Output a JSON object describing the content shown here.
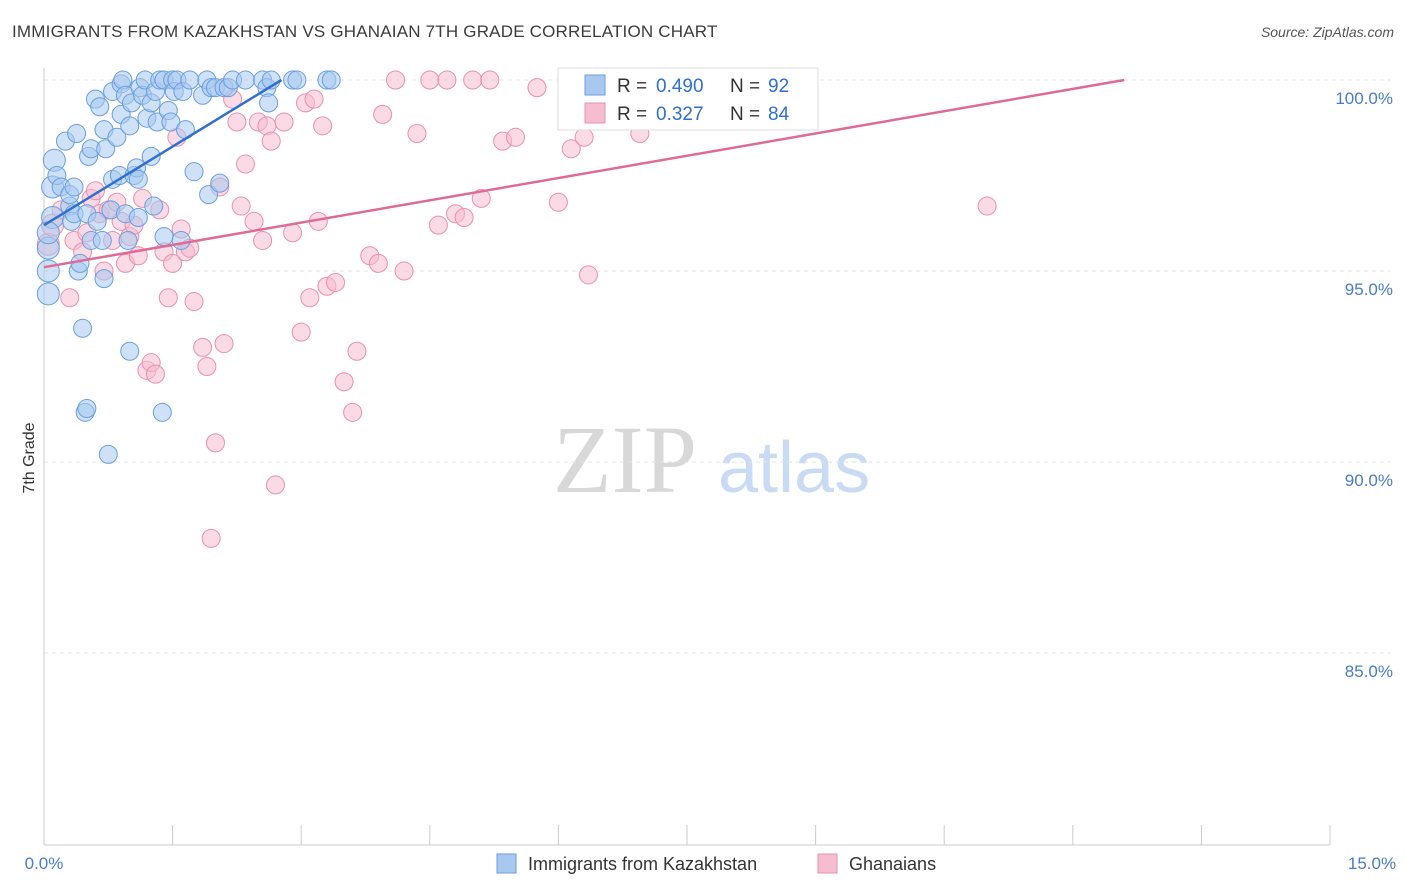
{
  "title": "IMMIGRANTS FROM KAZAKHSTAN VS GHANAIAN 7TH GRADE CORRELATION CHART",
  "source": "Source: ZipAtlas.com",
  "watermark": {
    "zip": "ZIP",
    "atlas": "atlas"
  },
  "colors": {
    "blue_fill": "#a8c8f0",
    "blue_stroke": "#6a9fdc",
    "blue_line": "#2f6fd0",
    "pink_fill": "#f6bcd0",
    "pink_stroke": "#e890b0",
    "pink_line": "#e06a96",
    "grid": "#e3e3e3",
    "axis_text": "#4a7cc4"
  },
  "legend": {
    "rows": [
      {
        "r_label": "R =",
        "r_value": "0.490",
        "n_label": "N =",
        "n_value": "92"
      },
      {
        "r_label": "R =",
        "r_value": "0.327",
        "n_label": "N =",
        "n_value": "84"
      }
    ]
  },
  "chart_data": {
    "type": "scatter",
    "title": "IMMIGRANTS FROM KAZAKHSTAN VS GHANAIAN 7TH GRADE CORRELATION CHART",
    "xlabel": "",
    "ylabel": "7th Grade",
    "xlim": [
      0.0,
      15.0
    ],
    "ylim": [
      80.0,
      100.7
    ],
    "x_tick_labels": [
      "0.0%",
      "15.0%"
    ],
    "y_ticks": [
      {
        "value": 100.0,
        "label": "100.0%"
      },
      {
        "value": 95.0,
        "label": "95.0%"
      },
      {
        "value": 90.0,
        "label": "90.0%"
      },
      {
        "value": 85.0,
        "label": "85.0%"
      }
    ],
    "series": [
      {
        "name": "Immigrants from Kazakhstan",
        "color": "#a8c8f0",
        "trend": {
          "x": [
            0.0,
            2.77
          ],
          "y": [
            96.2,
            100.0
          ]
        },
        "points": [
          [
            0.05,
            95.6
          ],
          [
            0.05,
            95.0
          ],
          [
            0.05,
            94.4
          ],
          [
            0.1,
            97.2
          ],
          [
            0.1,
            96.4
          ],
          [
            0.12,
            97.9
          ],
          [
            0.15,
            97.5
          ],
          [
            0.2,
            97.2
          ],
          [
            0.25,
            98.4
          ],
          [
            0.3,
            96.7
          ],
          [
            0.3,
            97.0
          ],
          [
            0.32,
            96.3
          ],
          [
            0.35,
            97.2
          ],
          [
            0.35,
            96.5
          ],
          [
            0.38,
            98.6
          ],
          [
            0.4,
            95.0
          ],
          [
            0.42,
            95.2
          ],
          [
            0.45,
            93.5
          ],
          [
            0.48,
            91.3
          ],
          [
            0.5,
            91.4
          ],
          [
            0.5,
            96.5
          ],
          [
            0.52,
            98.0
          ],
          [
            0.55,
            98.2
          ],
          [
            0.55,
            95.8
          ],
          [
            0.6,
            99.5
          ],
          [
            0.62,
            96.3
          ],
          [
            0.65,
            99.3
          ],
          [
            0.68,
            95.8
          ],
          [
            0.7,
            94.8
          ],
          [
            0.7,
            98.7
          ],
          [
            0.72,
            98.2
          ],
          [
            0.75,
            90.2
          ],
          [
            0.78,
            96.6
          ],
          [
            0.8,
            99.7
          ],
          [
            0.8,
            97.4
          ],
          [
            0.85,
            98.5
          ],
          [
            0.88,
            97.5
          ],
          [
            0.9,
            99.9
          ],
          [
            0.9,
            99.1
          ],
          [
            0.92,
            100.0
          ],
          [
            0.95,
            96.5
          ],
          [
            0.95,
            99.6
          ],
          [
            0.98,
            95.8
          ],
          [
            1.0,
            92.9
          ],
          [
            1.0,
            98.8
          ],
          [
            1.02,
            99.4
          ],
          [
            1.05,
            97.5
          ],
          [
            1.08,
            97.7
          ],
          [
            1.1,
            97.4
          ],
          [
            1.1,
            96.4
          ],
          [
            1.12,
            99.8
          ],
          [
            1.15,
            99.6
          ],
          [
            1.18,
            100.0
          ],
          [
            1.2,
            99.0
          ],
          [
            1.25,
            99.4
          ],
          [
            1.25,
            98.0
          ],
          [
            1.28,
            96.7
          ],
          [
            1.3,
            99.7
          ],
          [
            1.32,
            98.9
          ],
          [
            1.35,
            100.0
          ],
          [
            1.38,
            91.3
          ],
          [
            1.4,
            95.9
          ],
          [
            1.4,
            100.0
          ],
          [
            1.45,
            99.2
          ],
          [
            1.48,
            98.9
          ],
          [
            1.5,
            100.0
          ],
          [
            1.52,
            99.7
          ],
          [
            1.55,
            100.0
          ],
          [
            1.6,
            95.8
          ],
          [
            1.62,
            99.7
          ],
          [
            1.65,
            98.7
          ],
          [
            1.7,
            100.0
          ],
          [
            1.75,
            97.6
          ],
          [
            1.85,
            99.6
          ],
          [
            1.9,
            100.0
          ],
          [
            1.92,
            97.0
          ],
          [
            1.95,
            99.8
          ],
          [
            2.0,
            99.8
          ],
          [
            2.05,
            97.3
          ],
          [
            2.1,
            99.8
          ],
          [
            2.15,
            99.8
          ],
          [
            2.2,
            100.0
          ],
          [
            2.35,
            100.0
          ],
          [
            2.55,
            100.0
          ],
          [
            2.6,
            99.8
          ],
          [
            2.62,
            99.4
          ],
          [
            2.65,
            100.0
          ],
          [
            2.9,
            100.0
          ],
          [
            2.95,
            100.0
          ],
          [
            3.3,
            100.0
          ],
          [
            3.35,
            100.0
          ],
          [
            0.05,
            96.0
          ]
        ]
      },
      {
        "name": "Ghanaians",
        "color": "#f6bcd0",
        "trend": {
          "x": [
            0.0,
            12.6
          ],
          "y": [
            95.1,
            100.0
          ]
        },
        "points": [
          [
            0.05,
            95.7
          ],
          [
            0.1,
            96.2
          ],
          [
            0.2,
            96.6
          ],
          [
            0.3,
            94.3
          ],
          [
            0.35,
            95.8
          ],
          [
            0.45,
            95.5
          ],
          [
            0.5,
            96.0
          ],
          [
            0.55,
            96.9
          ],
          [
            0.6,
            97.1
          ],
          [
            0.65,
            96.5
          ],
          [
            0.7,
            95.0
          ],
          [
            0.75,
            96.6
          ],
          [
            0.8,
            95.8
          ],
          [
            0.85,
            96.8
          ],
          [
            0.9,
            96.3
          ],
          [
            0.95,
            95.2
          ],
          [
            1.0,
            95.9
          ],
          [
            1.05,
            96.2
          ],
          [
            1.1,
            95.4
          ],
          [
            1.15,
            96.9
          ],
          [
            1.2,
            92.4
          ],
          [
            1.25,
            92.6
          ],
          [
            1.3,
            92.3
          ],
          [
            1.35,
            96.6
          ],
          [
            1.4,
            95.5
          ],
          [
            1.45,
            94.3
          ],
          [
            1.5,
            95.2
          ],
          [
            1.55,
            98.5
          ],
          [
            1.6,
            96.1
          ],
          [
            1.65,
            95.5
          ],
          [
            1.7,
            95.6
          ],
          [
            1.75,
            94.2
          ],
          [
            1.85,
            93.0
          ],
          [
            1.9,
            92.5
          ],
          [
            1.95,
            88.0
          ],
          [
            2.0,
            90.5
          ],
          [
            2.05,
            97.2
          ],
          [
            2.1,
            93.1
          ],
          [
            2.2,
            99.5
          ],
          [
            2.25,
            98.9
          ],
          [
            2.3,
            96.7
          ],
          [
            2.35,
            97.8
          ],
          [
            2.45,
            96.3
          ],
          [
            2.5,
            98.9
          ],
          [
            2.55,
            95.8
          ],
          [
            2.6,
            98.8
          ],
          [
            2.65,
            98.4
          ],
          [
            2.7,
            89.4
          ],
          [
            2.8,
            98.9
          ],
          [
            2.9,
            96.0
          ],
          [
            3.0,
            93.4
          ],
          [
            3.05,
            99.4
          ],
          [
            3.1,
            94.3
          ],
          [
            3.15,
            99.5
          ],
          [
            3.2,
            96.3
          ],
          [
            3.25,
            98.8
          ],
          [
            3.3,
            94.6
          ],
          [
            3.4,
            94.7
          ],
          [
            3.5,
            92.1
          ],
          [
            3.6,
            91.3
          ],
          [
            3.65,
            92.9
          ],
          [
            3.8,
            95.4
          ],
          [
            3.9,
            95.2
          ],
          [
            3.95,
            99.1
          ],
          [
            4.1,
            100.0
          ],
          [
            4.2,
            95.0
          ],
          [
            4.35,
            98.6
          ],
          [
            4.5,
            100.0
          ],
          [
            4.6,
            96.2
          ],
          [
            4.7,
            100.0
          ],
          [
            4.8,
            96.5
          ],
          [
            4.9,
            96.4
          ],
          [
            5.0,
            100.0
          ],
          [
            5.1,
            96.9
          ],
          [
            5.2,
            100.0
          ],
          [
            5.35,
            98.4
          ],
          [
            5.5,
            98.5
          ],
          [
            5.75,
            99.8
          ],
          [
            6.0,
            96.8
          ],
          [
            6.15,
            98.2
          ],
          [
            6.3,
            98.5
          ],
          [
            6.35,
            94.9
          ],
          [
            6.95,
            98.6
          ],
          [
            11.0,
            96.7
          ]
        ]
      }
    ],
    "legend_entries": [
      "Immigrants from Kazakhstan",
      "Ghanaians"
    ]
  }
}
